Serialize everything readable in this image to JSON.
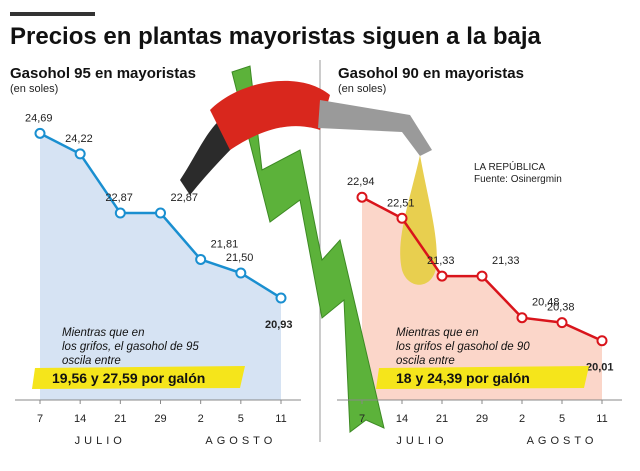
{
  "title": "Precios en plantas mayoristas siguen a la baja",
  "credit": "LA REPÚBLICA",
  "source": "Fuente: Osinergmin",
  "chart_data": [
    {
      "type": "line",
      "title": "Gasohol 95 en mayoristas",
      "subtitle": "(en soles)",
      "categories": [
        "7",
        "14",
        "21",
        "29",
        "2",
        "5",
        "11"
      ],
      "months": [
        "JULIO",
        "AGOSTO"
      ],
      "values": [
        24.69,
        24.22,
        22.87,
        22.87,
        21.81,
        21.5,
        20.93
      ],
      "value_labels": [
        "24,69",
        "24,22",
        "22,87",
        "22,87",
        "21,81",
        "21,50",
        "20,93"
      ],
      "color": "#1a8fd0",
      "area_color": "#d6e3f3",
      "ylim": [
        18.6,
        25.2
      ],
      "note": [
        "Mientras que en",
        "los grifos, el gasohol de 95",
        "oscila entre"
      ],
      "highlight": "19,56 y 27,59 por galón"
    },
    {
      "type": "line",
      "title": "Gasohol 90 en mayoristas",
      "subtitle": "(en soles)",
      "categories": [
        "7",
        "14",
        "21",
        "29",
        "2",
        "5",
        "11"
      ],
      "months": [
        "JULIO",
        "AGOSTO"
      ],
      "values": [
        22.94,
        22.51,
        21.33,
        21.33,
        20.48,
        20.38,
        20.01
      ],
      "value_labels": [
        "22,94",
        "22,51",
        "21,33",
        "21,33",
        "20,48",
        "20,38",
        "20,01"
      ],
      "color": "#d9141b",
      "area_color": "#fbd6c9",
      "ylim": [
        18.8,
        24.7
      ],
      "note": [
        "Mientras que en",
        "los grifos el gasohol de 90",
        "oscila entre"
      ],
      "highlight": "18 y 24,39 por galón"
    }
  ]
}
